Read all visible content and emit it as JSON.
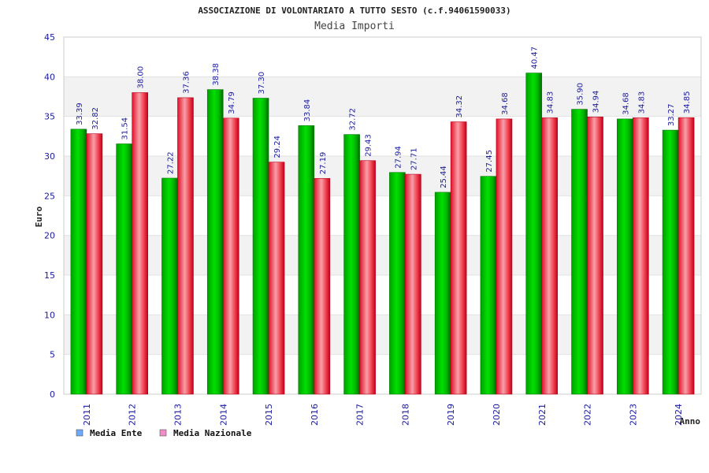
{
  "chart_data": {
    "type": "bar",
    "title": "ASSOCIAZIONE DI VOLONTARIATO A TUTTO SESTO (c.f.94061590033)",
    "subtitle": "Media Importi",
    "xlabel": "Anno",
    "ylabel": "Euro",
    "ylim": [
      0,
      45
    ],
    "yticks": [
      "0",
      "5",
      "10",
      "15",
      "20",
      "25",
      "30",
      "35",
      "40",
      "45"
    ],
    "grid": true,
    "legend_position": "bottom-left",
    "categories": [
      "2011",
      "2012",
      "2013",
      "2014",
      "2015",
      "2016",
      "2017",
      "2018",
      "2019",
      "2020",
      "2021",
      "2022",
      "2023",
      "2024"
    ],
    "series": [
      {
        "name": "Media Ente",
        "color": "#00c800",
        "legend_color": "#6fa8ff",
        "values": [
          33.39,
          31.54,
          27.22,
          38.38,
          37.3,
          33.84,
          32.72,
          27.94,
          25.44,
          27.45,
          40.47,
          35.9,
          34.68,
          33.27
        ],
        "labels": [
          "33.39",
          "31.54",
          "27.22",
          "38.38",
          "37.30",
          "33.84",
          "32.72",
          "27.94",
          "25.44",
          "27.45",
          "40.47",
          "35.90",
          "34.68",
          "33.27"
        ]
      },
      {
        "name": "Media Nazionale",
        "color": "#f0283c",
        "legend_color": "#f08cc8",
        "values": [
          32.82,
          38.0,
          37.36,
          34.79,
          29.24,
          27.19,
          29.43,
          27.71,
          34.32,
          34.68,
          34.83,
          34.94,
          34.83,
          34.85
        ],
        "labels": [
          "32.82",
          "38.00",
          "37.36",
          "34.79",
          "29.24",
          "27.19",
          "29.43",
          "27.71",
          "34.32",
          "34.68",
          "34.83",
          "34.94",
          "34.83",
          "34.85"
        ]
      }
    ]
  }
}
